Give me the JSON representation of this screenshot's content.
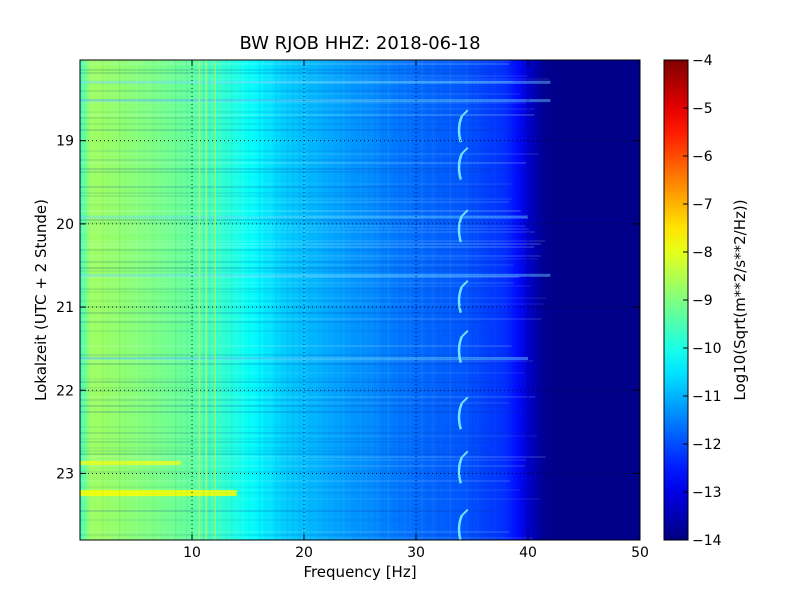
{
  "chart_data": {
    "type": "heatmap",
    "title": "BW RJOB HHZ: 2018-06-18",
    "xlabel": "Frequency [Hz]",
    "ylabel": "Lokalzeit (UTC + 2 Stunde)",
    "xlim": [
      0,
      50
    ],
    "ylim": [
      18.03,
      23.8
    ],
    "x_ticks": [
      10,
      20,
      30,
      40,
      50
    ],
    "y_ticks": [
      19,
      20,
      21,
      22,
      23
    ],
    "y_inverted": true,
    "grid": true,
    "colormap": "jet",
    "colorbar": {
      "label": "Log10(Sqrt(m**2/s**2/Hz))",
      "range": [
        -14,
        -4
      ],
      "ticks": [
        -14,
        -13,
        -12,
        -11,
        -10,
        -9,
        -8,
        -7,
        -6,
        -5,
        -4
      ]
    },
    "spectrum_profile": {
      "frequency_hz": [
        0,
        1,
        3,
        6,
        10,
        14,
        18,
        22,
        26,
        30,
        34,
        38,
        39.5,
        40.5,
        42,
        50
      ],
      "log10_amplitude": [
        -9.6,
        -8.7,
        -8.8,
        -9.0,
        -9.3,
        -10.0,
        -10.7,
        -11.1,
        -11.4,
        -11.7,
        -11.9,
        -12.3,
        -12.8,
        -13.6,
        -13.9,
        -13.9
      ]
    },
    "events": [
      {
        "time": 18.85,
        "frequency_hz": 34
      },
      {
        "time": 19.3,
        "frequency_hz": 34
      },
      {
        "time": 20.05,
        "frequency_hz": 34
      },
      {
        "time": 20.9,
        "frequency_hz": 34
      },
      {
        "time": 21.5,
        "frequency_hz": 34
      },
      {
        "time": 22.3,
        "frequency_hz": 34
      },
      {
        "time": 22.95,
        "frequency_hz": 34
      },
      {
        "time": 23.65,
        "frequency_hz": 34
      }
    ]
  }
}
